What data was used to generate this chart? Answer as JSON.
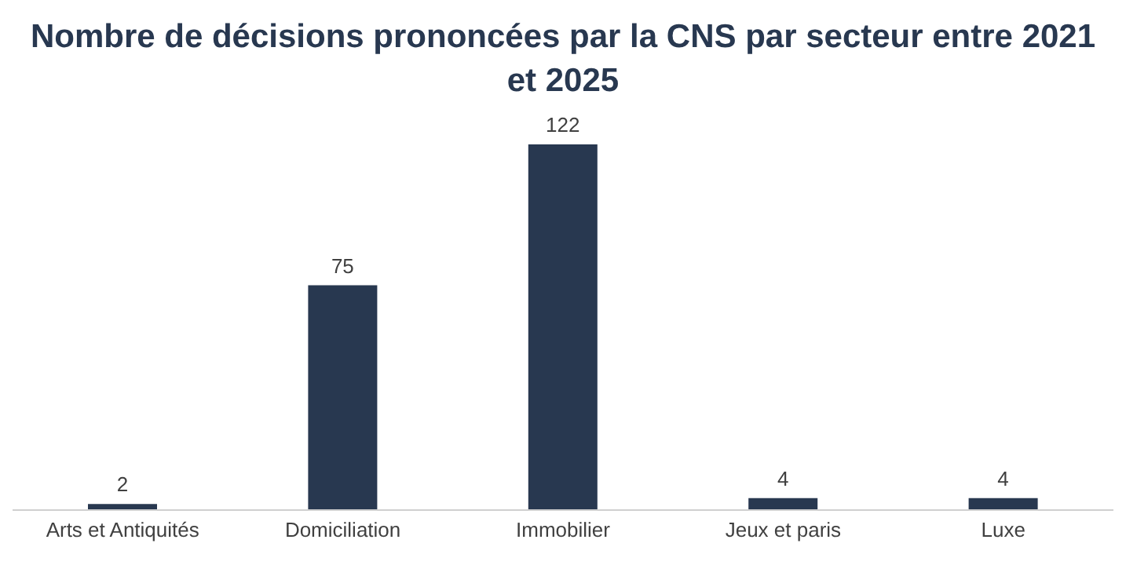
{
  "chart_data": {
    "type": "bar",
    "title": "Nombre de décisions prononcées par la CNS par secteur entre 2021 et 2025",
    "categories": [
      "Arts et Antiquités",
      "Domiciliation",
      "Immobilier",
      "Jeux et paris",
      "Luxe"
    ],
    "values": [
      2,
      75,
      122,
      4,
      4
    ],
    "color": "#283850",
    "data_labels": true,
    "grid": false
  }
}
